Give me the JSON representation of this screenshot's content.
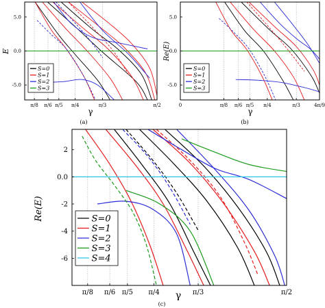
{
  "figure": {
    "panels": [
      {
        "id": "a",
        "caption": "(a)",
        "xlabel": "γ",
        "ylabel": "E"
      },
      {
        "id": "b",
        "caption": "(b)",
        "xlabel": "γ",
        "ylabel": "Re(E)"
      },
      {
        "id": "c",
        "caption": "(c)",
        "xlabel": "γ",
        "ylabel": "Re(E)"
      }
    ]
  },
  "chart_data": [
    {
      "type": "line",
      "panel": "a",
      "caption": "(a)",
      "xlabel": "γ",
      "ylabel": "E",
      "xlim": [
        0.3,
        1.5708
      ],
      "ylim": [
        -7.2,
        7.2
      ],
      "xticks": [
        {
          "value": 0.3927,
          "label": "π/8"
        },
        {
          "value": 0.5236,
          "label": "π/6"
        },
        {
          "value": 0.6283,
          "label": "π/5"
        },
        {
          "value": 0.7854,
          "label": "π/4"
        },
        {
          "value": 1.0472,
          "label": "π/3"
        },
        {
          "value": 1.5708,
          "label": "π/2"
        }
      ],
      "yticks": [
        {
          "value": 5,
          "label": "5.0"
        },
        {
          "value": 0,
          "label": "0.0"
        },
        {
          "value": -5,
          "label": "-5.0"
        }
      ],
      "legend": {
        "position": "bottom-left",
        "entries": [
          {
            "label": "S=0",
            "color": "#000000"
          },
          {
            "label": "S=1",
            "color": "#e41a1c"
          },
          {
            "label": "S=2",
            "color": "#2b2bd6"
          },
          {
            "label": "S=3",
            "color": "#1a9a1a"
          }
        ]
      },
      "series": [
        {
          "name": "S=0",
          "color": "#000000",
          "dash": false,
          "x": [
            0.52,
            0.79,
            1.05,
            1.37,
            1.48
          ],
          "y": [
            7.2,
            3.5,
            -0.2,
            -4.5,
            -7.2
          ]
        },
        {
          "name": "S=0",
          "color": "#000000",
          "dash": false,
          "x": [
            0.4,
            0.63,
            0.79,
            1.0,
            1.12
          ],
          "y": [
            7.2,
            2.3,
            -0.6,
            -4.3,
            -7.2
          ]
        },
        {
          "name": "S=0",
          "color": "#000000",
          "dash": false,
          "x": [
            0.65,
            0.95,
            1.2,
            1.42,
            1.52
          ],
          "y": [
            7.2,
            3.2,
            0.2,
            -3.4,
            -7.2
          ]
        },
        {
          "name": "S=1",
          "color": "#e41a1c",
          "dash": false,
          "x": [
            0.4,
            0.56,
            0.7,
            0.87,
            0.97
          ],
          "y": [
            7.2,
            3.0,
            0.3,
            -3.8,
            -7.2
          ]
        },
        {
          "name": "S=1",
          "color": "#e41a1c",
          "dash": false,
          "x": [
            0.47,
            0.7,
            0.9,
            1.12,
            1.24
          ],
          "y": [
            7.2,
            3.2,
            0.0,
            -4.0,
            -7.2
          ]
        },
        {
          "name": "S=1",
          "color": "#e41a1c",
          "dash": false,
          "x": [
            0.57,
            0.85,
            1.1,
            1.33,
            1.44
          ],
          "y": [
            7.2,
            3.5,
            0.3,
            -3.8,
            -7.2
          ]
        },
        {
          "name": "S=1",
          "color": "#e41a1c",
          "dash": false,
          "x": [
            0.72,
            1.0,
            1.25,
            1.46,
            1.55
          ],
          "y": [
            7.2,
            3.8,
            0.6,
            -3.2,
            -7.2
          ]
        },
        {
          "name": "S=1",
          "color": "#e41a1c",
          "dash": false,
          "x": [
            0.85,
            1.1,
            1.32,
            1.5,
            1.57
          ],
          "y": [
            7.2,
            4.2,
            1.2,
            -2.5,
            -6.5
          ]
        },
        {
          "name": "S=1",
          "color": "#e41a1c",
          "dash": true,
          "x": [
            0.72,
            0.95,
            1.15,
            1.3
          ],
          "y": [
            7.2,
            3.5,
            0.0,
            -3.5
          ]
        },
        {
          "name": "S=2",
          "color": "#2b2bd6",
          "dash": true,
          "x": [
            0.42,
            0.55,
            0.7,
            0.86,
            0.98
          ],
          "y": [
            4.5,
            2.5,
            0.3,
            -3.5,
            -7.2
          ]
        },
        {
          "name": "S=2",
          "color": "#2b2bd6",
          "dash": true,
          "x": [
            0.6,
            0.78,
            0.93,
            1.05
          ],
          "y": [
            7.2,
            4.2,
            1.5,
            -1.0
          ]
        },
        {
          "name": "S=2",
          "color": "#2b2bd6",
          "dash": false,
          "x": [
            0.58,
            0.75,
            0.95,
            1.2,
            1.48
          ],
          "y": [
            7.2,
            4.0,
            2.0,
            1.2,
            0.3
          ]
        },
        {
          "name": "S=2",
          "color": "#2b2bd6",
          "dash": false,
          "x": [
            0.55,
            0.68,
            0.85,
            1.0,
            1.16
          ],
          "y": [
            -4.6,
            -4.5,
            -4.2,
            -5.0,
            -7.2
          ]
        },
        {
          "name": "S=2",
          "color": "#2b2bd6",
          "dash": false,
          "x": [
            0.83,
            1.05,
            1.3,
            1.5
          ],
          "y": [
            7.2,
            3.0,
            -0.5,
            -4.0
          ]
        },
        {
          "name": "S=3",
          "color": "#1a9a1a",
          "dash": false,
          "x": [
            0.3,
            1.5708
          ],
          "y": [
            0.0,
            0.0
          ]
        }
      ]
    },
    {
      "type": "line",
      "panel": "b",
      "caption": "(b)",
      "xlabel": "γ",
      "ylabel": "Re(E)",
      "xlim": [
        0,
        1.2566
      ],
      "ylim": [
        -7.2,
        7.2
      ],
      "xticks": [
        {
          "value": 0,
          "label": "0"
        },
        {
          "value": 0.3927,
          "label": "π/8"
        },
        {
          "value": 0.5236,
          "label": "π/6"
        },
        {
          "value": 0.6283,
          "label": "π/5"
        },
        {
          "value": 0.7854,
          "label": "π/4"
        },
        {
          "value": 1.0472,
          "label": "π/3"
        },
        {
          "value": 1.2566,
          "label": "4π/9"
        }
      ],
      "yticks": [
        {
          "value": 5,
          "label": "5.0"
        },
        {
          "value": 0,
          "label": "0.0"
        },
        {
          "value": -5,
          "label": "-5.0"
        }
      ],
      "legend": {
        "position": "bottom-left",
        "entries": [
          {
            "label": "S=0",
            "color": "#000000"
          },
          {
            "label": "S=1",
            "color": "#e41a1c"
          },
          {
            "label": "S=2",
            "color": "#2b2bd6"
          },
          {
            "label": "S=3",
            "color": "#1a9a1a"
          }
        ]
      },
      "series": [
        {
          "name": "S=0",
          "color": "#000000",
          "dash": false,
          "x": [
            0.4,
            0.58,
            0.75,
            0.92,
            1.02
          ],
          "y": [
            7.2,
            3.0,
            0.0,
            -4.2,
            -7.2
          ]
        },
        {
          "name": "S=0",
          "color": "#000000",
          "dash": false,
          "x": [
            0.55,
            0.8,
            1.0,
            1.18,
            1.2566
          ],
          "y": [
            7.2,
            3.2,
            0.3,
            -3.6,
            -6.2
          ]
        },
        {
          "name": "S=1",
          "color": "#e41a1c",
          "dash": false,
          "x": [
            0.32,
            0.46,
            0.6,
            0.74,
            0.83
          ],
          "y": [
            7.2,
            3.0,
            0.2,
            -3.8,
            -7.2
          ]
        },
        {
          "name": "S=1",
          "color": "#e41a1c",
          "dash": false,
          "x": [
            0.45,
            0.66,
            0.85,
            1.02,
            1.12
          ],
          "y": [
            7.2,
            3.2,
            0.0,
            -3.8,
            -7.2
          ]
        },
        {
          "name": "S=1",
          "color": "#e41a1c",
          "dash": false,
          "x": [
            0.62,
            0.85,
            1.05,
            1.2,
            1.2566
          ],
          "y": [
            7.2,
            3.6,
            0.6,
            -2.8,
            -5.0
          ]
        },
        {
          "name": "S=1",
          "color": "#e41a1c",
          "dash": true,
          "x": [
            0.6,
            0.8,
            0.98,
            1.12
          ],
          "y": [
            7.2,
            3.5,
            0.0,
            -3.0
          ]
        },
        {
          "name": "S=2",
          "color": "#2b2bd6",
          "dash": true,
          "x": [
            0.35,
            0.48,
            0.62,
            0.76,
            0.86
          ],
          "y": [
            4.8,
            2.8,
            0.3,
            -3.6,
            -7.2
          ]
        },
        {
          "name": "S=2",
          "color": "#2b2bd6",
          "dash": false,
          "x": [
            0.72,
            0.9,
            1.05,
            1.18,
            1.2566
          ],
          "y": [
            7.2,
            4.0,
            1.8,
            0.2,
            -1.2
          ]
        },
        {
          "name": "S=2",
          "color": "#2b2bd6",
          "dash": false,
          "x": [
            0.5,
            0.7,
            0.9,
            1.1,
            1.2566
          ],
          "y": [
            -4.2,
            -4.3,
            -4.6,
            -5.3,
            -6.0
          ]
        },
        {
          "name": "S=2",
          "color": "#2b2bd6",
          "dash": false,
          "x": [
            0.85,
            1.0,
            1.15,
            1.2566
          ],
          "y": [
            7.2,
            4.2,
            1.0,
            -1.8
          ]
        },
        {
          "name": "S=3",
          "color": "#1a9a1a",
          "dash": false,
          "x": [
            0,
            1.2566
          ],
          "y": [
            0.0,
            0.0
          ]
        }
      ]
    },
    {
      "type": "line",
      "panel": "c",
      "caption": "(c)",
      "xlabel": "γ",
      "ylabel": "Re(E)",
      "xlim": [
        0.3,
        1.5708
      ],
      "ylim": [
        -8,
        3.5
      ],
      "xticks": [
        {
          "value": 0.3927,
          "label": "π/8"
        },
        {
          "value": 0.5236,
          "label": "π/6"
        },
        {
          "value": 0.6283,
          "label": "π/5"
        },
        {
          "value": 0.7854,
          "label": "π/4"
        },
        {
          "value": 1.0472,
          "label": "π/3"
        },
        {
          "value": 1.5708,
          "label": "π/2"
        }
      ],
      "yticks": [
        {
          "value": 2,
          "label": "2"
        },
        {
          "value": 0,
          "label": "0.0"
        },
        {
          "value": -2,
          "label": "-2"
        },
        {
          "value": -4,
          "label": "-4"
        },
        {
          "value": -6,
          "label": "-6"
        }
      ],
      "legend": {
        "position": "bottom-left",
        "entries": [
          {
            "label": "S=0",
            "color": "#000000"
          },
          {
            "label": "S=1",
            "color": "#e41a1c"
          },
          {
            "label": "S=2",
            "color": "#2b2bd6"
          },
          {
            "label": "S=3",
            "color": "#1a9a1a"
          },
          {
            "label": "S=4",
            "color": "#29c5e6"
          }
        ]
      },
      "series": [
        {
          "name": "S=0",
          "color": "#000000",
          "dash": false,
          "x": [
            0.55,
            0.72,
            0.88,
            1.02,
            1.12
          ],
          "y": [
            3.5,
            0.8,
            -2.0,
            -5.5,
            -8.0
          ]
        },
        {
          "name": "S=0",
          "color": "#000000",
          "dash": false,
          "x": [
            0.7,
            0.9,
            1.1,
            1.28,
            1.38
          ],
          "y": [
            3.5,
            1.0,
            -1.8,
            -5.2,
            -8.0
          ]
        },
        {
          "name": "S=0",
          "color": "#000000",
          "dash": false,
          "x": [
            0.85,
            1.08,
            1.28,
            1.45,
            1.53
          ],
          "y": [
            3.5,
            0.8,
            -2.2,
            -5.5,
            -8.0
          ]
        },
        {
          "name": "S=0",
          "color": "#000000",
          "dash": true,
          "x": [
            0.62,
            0.78,
            0.92,
            1.05
          ],
          "y": [
            3.5,
            1.2,
            -1.2,
            -4.0
          ]
        },
        {
          "name": "S=1",
          "color": "#e41a1c",
          "dash": false,
          "x": [
            0.38,
            0.52,
            0.65,
            0.76,
            0.84
          ],
          "y": [
            3.5,
            1.0,
            -1.8,
            -5.0,
            -8.0
          ]
        },
        {
          "name": "S=1",
          "color": "#e41a1c",
          "dash": false,
          "x": [
            0.5,
            0.68,
            0.84,
            0.98,
            1.08
          ],
          "y": [
            3.5,
            0.8,
            -2.0,
            -5.4,
            -8.0
          ]
        },
        {
          "name": "S=1",
          "color": "#e41a1c",
          "dash": false,
          "x": [
            0.78,
            1.0,
            1.2,
            1.38,
            1.47
          ],
          "y": [
            3.5,
            1.0,
            -2.0,
            -5.5,
            -8.0
          ]
        },
        {
          "name": "S=1",
          "color": "#e41a1c",
          "dash": true,
          "x": [
            0.8,
            1.0,
            1.18,
            1.32,
            1.4
          ],
          "y": [
            3.5,
            1.2,
            -1.5,
            -4.8,
            -7.2
          ]
        },
        {
          "name": "S=2",
          "color": "#2b2bd6",
          "dash": false,
          "x": [
            0.75,
            0.95,
            1.15,
            1.35,
            1.5708
          ],
          "y": [
            3.5,
            2.0,
            0.6,
            -0.2,
            -1.6
          ]
        },
        {
          "name": "S=2",
          "color": "#2b2bd6",
          "dash": false,
          "x": [
            0.92,
            1.15,
            1.35,
            1.5,
            1.56
          ],
          "y": [
            3.5,
            0.5,
            -2.5,
            -5.8,
            -8.0
          ]
        },
        {
          "name": "S=2",
          "color": "#2b2bd6",
          "dash": true,
          "x": [
            0.6,
            0.75,
            0.88,
            1.0
          ],
          "y": [
            3.5,
            1.5,
            -0.8,
            -3.5
          ]
        },
        {
          "name": "S=2",
          "color": "#2b2bd6",
          "dash": false,
          "x": [
            0.45,
            0.62,
            0.78,
            0.92,
            1.0
          ],
          "y": [
            -2.0,
            -1.8,
            -2.4,
            -4.2,
            -8.0
          ]
        },
        {
          "name": "S=3",
          "color": "#1a9a1a",
          "dash": true,
          "x": [
            0.36,
            0.44,
            0.55,
            0.66,
            0.74,
            0.8
          ],
          "y": [
            3.0,
            1.2,
            -0.6,
            -2.6,
            -5.0,
            -8.0
          ]
        },
        {
          "name": "S=3",
          "color": "#1a9a1a",
          "dash": false,
          "x": [
            0.95,
            1.15,
            1.35,
            1.5708
          ],
          "y": [
            2.8,
            1.8,
            0.9,
            0.4
          ]
        },
        {
          "name": "S=3",
          "color": "#1a9a1a",
          "dash": false,
          "x": [
            0.62,
            0.82,
            1.0,
            1.14
          ],
          "y": [
            -1.0,
            -2.0,
            -4.0,
            -8.0
          ]
        },
        {
          "name": "S=4",
          "color": "#29c5e6",
          "dash": false,
          "x": [
            0.3,
            1.5708
          ],
          "y": [
            0.0,
            0.0
          ]
        }
      ]
    }
  ]
}
